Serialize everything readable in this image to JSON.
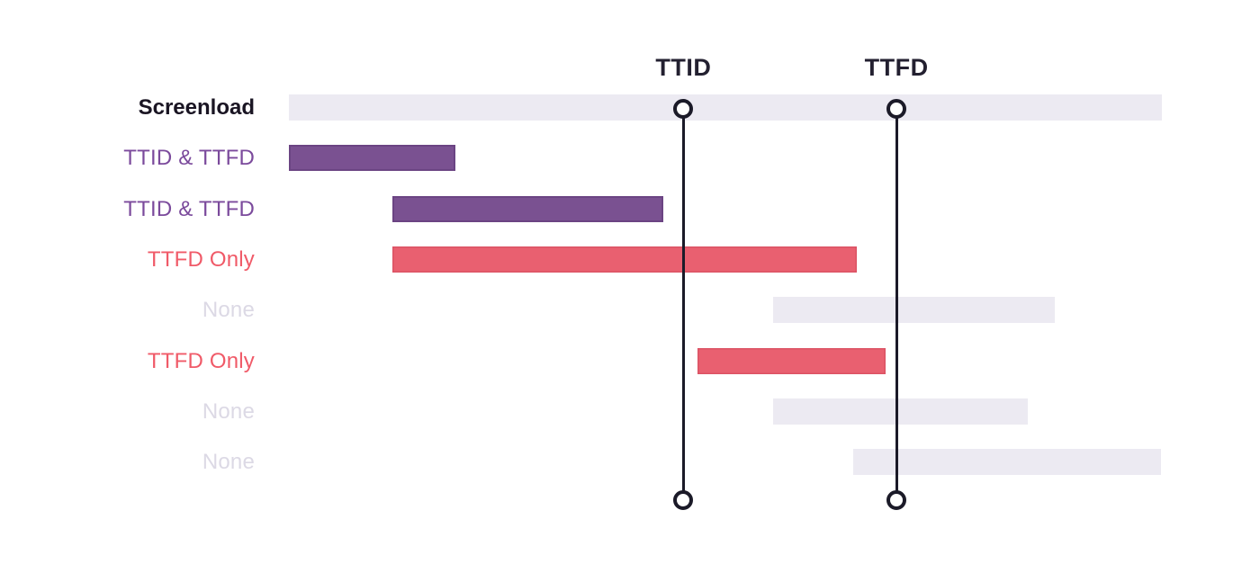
{
  "chart_data": {
    "type": "bar",
    "variant": "horizontal-gantt-timeline",
    "orientation": "horizontal",
    "grid": "off",
    "legend": "none",
    "markers": [
      {
        "id": "ttid",
        "label": "TTID",
        "position_pct": 45.2
      },
      {
        "id": "ttfd",
        "label": "TTFD",
        "position_pct": 69.6
      }
    ],
    "rows": [
      {
        "label": "Screenload",
        "category": "screenload",
        "start_pct": 0.0,
        "end_pct": 100.0
      },
      {
        "label": "TTID & TTFD",
        "category": "ttid_ttfd",
        "start_pct": 0.0,
        "end_pct": 19.1
      },
      {
        "label": "TTID & TTFD",
        "category": "ttid_ttfd",
        "start_pct": 11.9,
        "end_pct": 42.9
      },
      {
        "label": "TTFD Only",
        "category": "ttfd_only",
        "start_pct": 11.9,
        "end_pct": 65.1
      },
      {
        "label": "None",
        "category": "none",
        "start_pct": 55.5,
        "end_pct": 87.7
      },
      {
        "label": "TTFD Only",
        "category": "ttfd_only",
        "start_pct": 46.8,
        "end_pct": 68.3
      },
      {
        "label": "None",
        "category": "none",
        "start_pct": 55.5,
        "end_pct": 84.6
      },
      {
        "label": "None",
        "category": "none",
        "start_pct": 64.6,
        "end_pct": 99.9
      }
    ],
    "colors": {
      "screenload_bar": "#ECEAF2",
      "none_bar": "#ECEAF2",
      "ttid_ttfd_bar": "#7A5191",
      "ttfd_only_bar": "#E96070",
      "screenload_label": "#1A1523",
      "none_label": "#DCD9E5",
      "ttid_ttfd_label": "#7B4A9C",
      "ttfd_only_label": "#F05A68",
      "marker_line": "#1B1A28",
      "marker_label": "#232030",
      "background": "#FFFFFF"
    }
  }
}
